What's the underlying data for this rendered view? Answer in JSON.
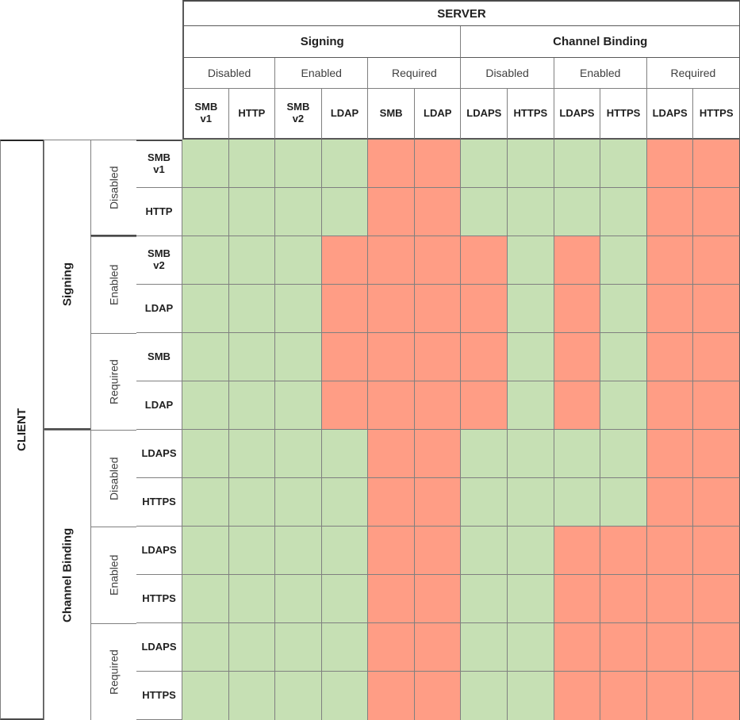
{
  "table": {
    "server_title": "SERVER",
    "client_title": "CLIENT"
  },
  "colors": {
    "compatible_green": "#c6e0b4",
    "incompatible_red": "#ff9d85",
    "grid_line": "#808080",
    "section_line": "#595959",
    "text_dark": "#1f1f1f",
    "text_medium": "#404040",
    "background": "#ffffff"
  },
  "chart_data": {
    "type": "heatmap",
    "x_axis_title": "SERVER",
    "y_axis_title": "CLIENT",
    "columns": [
      {
        "group": "Signing",
        "state": "Disabled",
        "protocol": "SMB v1"
      },
      {
        "group": "Signing",
        "state": "Disabled",
        "protocol": "HTTP"
      },
      {
        "group": "Signing",
        "state": "Enabled",
        "protocol": "SMB v2"
      },
      {
        "group": "Signing",
        "state": "Enabled",
        "protocol": "LDAP"
      },
      {
        "group": "Signing",
        "state": "Required",
        "protocol": "SMB"
      },
      {
        "group": "Signing",
        "state": "Required",
        "protocol": "LDAP"
      },
      {
        "group": "Channel Binding",
        "state": "Disabled",
        "protocol": "LDAPS"
      },
      {
        "group": "Channel Binding",
        "state": "Disabled",
        "protocol": "HTTPS"
      },
      {
        "group": "Channel Binding",
        "state": "Enabled",
        "protocol": "LDAPS"
      },
      {
        "group": "Channel Binding",
        "state": "Enabled",
        "protocol": "HTTPS"
      },
      {
        "group": "Channel Binding",
        "state": "Required",
        "protocol": "LDAPS"
      },
      {
        "group": "Channel Binding",
        "state": "Required",
        "protocol": "HTTPS"
      }
    ],
    "rows": [
      {
        "group": "Signing",
        "state": "Disabled",
        "protocol": "SMB v1"
      },
      {
        "group": "Signing",
        "state": "Disabled",
        "protocol": "HTTP"
      },
      {
        "group": "Signing",
        "state": "Enabled",
        "protocol": "SMB v2"
      },
      {
        "group": "Signing",
        "state": "Enabled",
        "protocol": "LDAP"
      },
      {
        "group": "Signing",
        "state": "Required",
        "protocol": "SMB"
      },
      {
        "group": "Signing",
        "state": "Required",
        "protocol": "LDAP"
      },
      {
        "group": "Channel Binding",
        "state": "Disabled",
        "protocol": "LDAPS"
      },
      {
        "group": "Channel Binding",
        "state": "Disabled",
        "protocol": "HTTPS"
      },
      {
        "group": "Channel Binding",
        "state": "Enabled",
        "protocol": "LDAPS"
      },
      {
        "group": "Channel Binding",
        "state": "Enabled",
        "protocol": "HTTPS"
      },
      {
        "group": "Channel Binding",
        "state": "Required",
        "protocol": "LDAPS"
      },
      {
        "group": "Channel Binding",
        "state": "Required",
        "protocol": "HTTPS"
      }
    ],
    "values": [
      [
        1,
        1,
        1,
        1,
        0,
        0,
        1,
        1,
        1,
        1,
        0,
        0
      ],
      [
        1,
        1,
        1,
        1,
        0,
        0,
        1,
        1,
        1,
        1,
        0,
        0
      ],
      [
        1,
        1,
        1,
        0,
        0,
        0,
        0,
        1,
        0,
        1,
        0,
        0
      ],
      [
        1,
        1,
        1,
        0,
        0,
        0,
        0,
        1,
        0,
        1,
        0,
        0
      ],
      [
        1,
        1,
        1,
        0,
        0,
        0,
        0,
        1,
        0,
        1,
        0,
        0
      ],
      [
        1,
        1,
        1,
        0,
        0,
        0,
        0,
        1,
        0,
        1,
        0,
        0
      ],
      [
        1,
        1,
        1,
        1,
        0,
        0,
        1,
        1,
        1,
        1,
        0,
        0
      ],
      [
        1,
        1,
        1,
        1,
        0,
        0,
        1,
        1,
        1,
        1,
        0,
        0
      ],
      [
        1,
        1,
        1,
        1,
        0,
        0,
        1,
        1,
        0,
        0,
        0,
        0
      ],
      [
        1,
        1,
        1,
        1,
        0,
        0,
        1,
        1,
        0,
        0,
        0,
        0
      ],
      [
        1,
        1,
        1,
        1,
        0,
        0,
        1,
        1,
        0,
        0,
        0,
        0
      ],
      [
        1,
        1,
        1,
        1,
        0,
        0,
        1,
        1,
        0,
        0,
        0,
        0
      ]
    ],
    "cell_color_meaning": {
      "1": "#c6e0b4",
      "0": "#ff9d85"
    }
  }
}
